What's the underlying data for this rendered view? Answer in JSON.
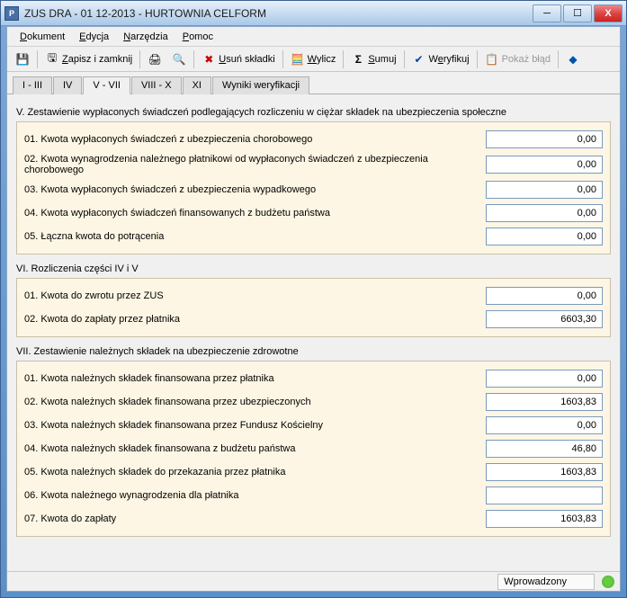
{
  "window": {
    "title": "ZUS DRA - 01 12-2013 - HURTOWNIA CELFORM",
    "icon_text": "P"
  },
  "menu": {
    "dokument": "Dokument",
    "edycja": "Edycja",
    "narzedzia": "Narzędzia",
    "pomoc": "Pomoc"
  },
  "toolbar": {
    "zapisz": "Zapisz i zamknij",
    "usun": "Usuń składki",
    "wylicz": "Wylicz",
    "sumuj": "Sumuj",
    "weryfikuj": "Weryfikuj",
    "pokaz_blad": "Pokaż błąd"
  },
  "tabs": {
    "t1": "I - III",
    "t2": "IV",
    "t3": "V - VII",
    "t4": "VIII - X",
    "t5": "XI",
    "t6": "Wyniki weryfikacji"
  },
  "section5": {
    "title": "V. Zestawienie wypłaconych świadczeń podlegających rozliczeniu w ciężar składek na ubezpieczenia społeczne",
    "r01": {
      "label": "01. Kwota wypłaconych świadczeń z ubezpieczenia chorobowego",
      "value": "0,00"
    },
    "r02": {
      "label": "02. Kwota wynagrodzenia należnego płatnikowi od wypłaconych świadczeń z ubezpieczenia chorobowego",
      "value": "0,00"
    },
    "r03": {
      "label": "03. Kwota wypłaconych świadczeń z ubezpieczenia wypadkowego",
      "value": "0,00"
    },
    "r04": {
      "label": "04. Kwota wypłaconych świadczeń finansowanych z budżetu państwa",
      "value": "0,00"
    },
    "r05": {
      "label": "05. Łączna kwota do potrącenia",
      "value": "0,00"
    }
  },
  "section6": {
    "title": "VI. Rozliczenia części IV i V",
    "r01": {
      "label": "01. Kwota do zwrotu przez ZUS",
      "value": "0,00"
    },
    "r02": {
      "label": "02. Kwota do zapłaty przez płatnika",
      "value": "6603,30"
    }
  },
  "section7": {
    "title": "VII. Zestawienie należnych składek na ubezpieczenie zdrowotne",
    "r01": {
      "label": "01. Kwota należnych składek finansowana przez płatnika",
      "value": "0,00"
    },
    "r02": {
      "label": "02. Kwota należnych składek finansowana przez ubezpieczonych",
      "value": "1603,83"
    },
    "r03": {
      "label": "03. Kwota należnych składek finansowana przez Fundusz Kościelny",
      "value": "0,00"
    },
    "r04": {
      "label": "04. Kwota należnych składek finansowana z budżetu państwa",
      "value": "46,80"
    },
    "r05": {
      "label": "05. Kwota należnych składek do przekazania przez płatnika",
      "value": "1603,83"
    },
    "r06": {
      "label": "06. Kwota należnego wynagrodzenia dla płatnika",
      "value": ""
    },
    "r07": {
      "label": "07. Kwota do zapłaty",
      "value": "1603,83"
    }
  },
  "status": {
    "text": "Wprowadzony"
  },
  "colors": {
    "section_bg": "#fdf6e4",
    "section_border": "#c8c0a8"
  }
}
